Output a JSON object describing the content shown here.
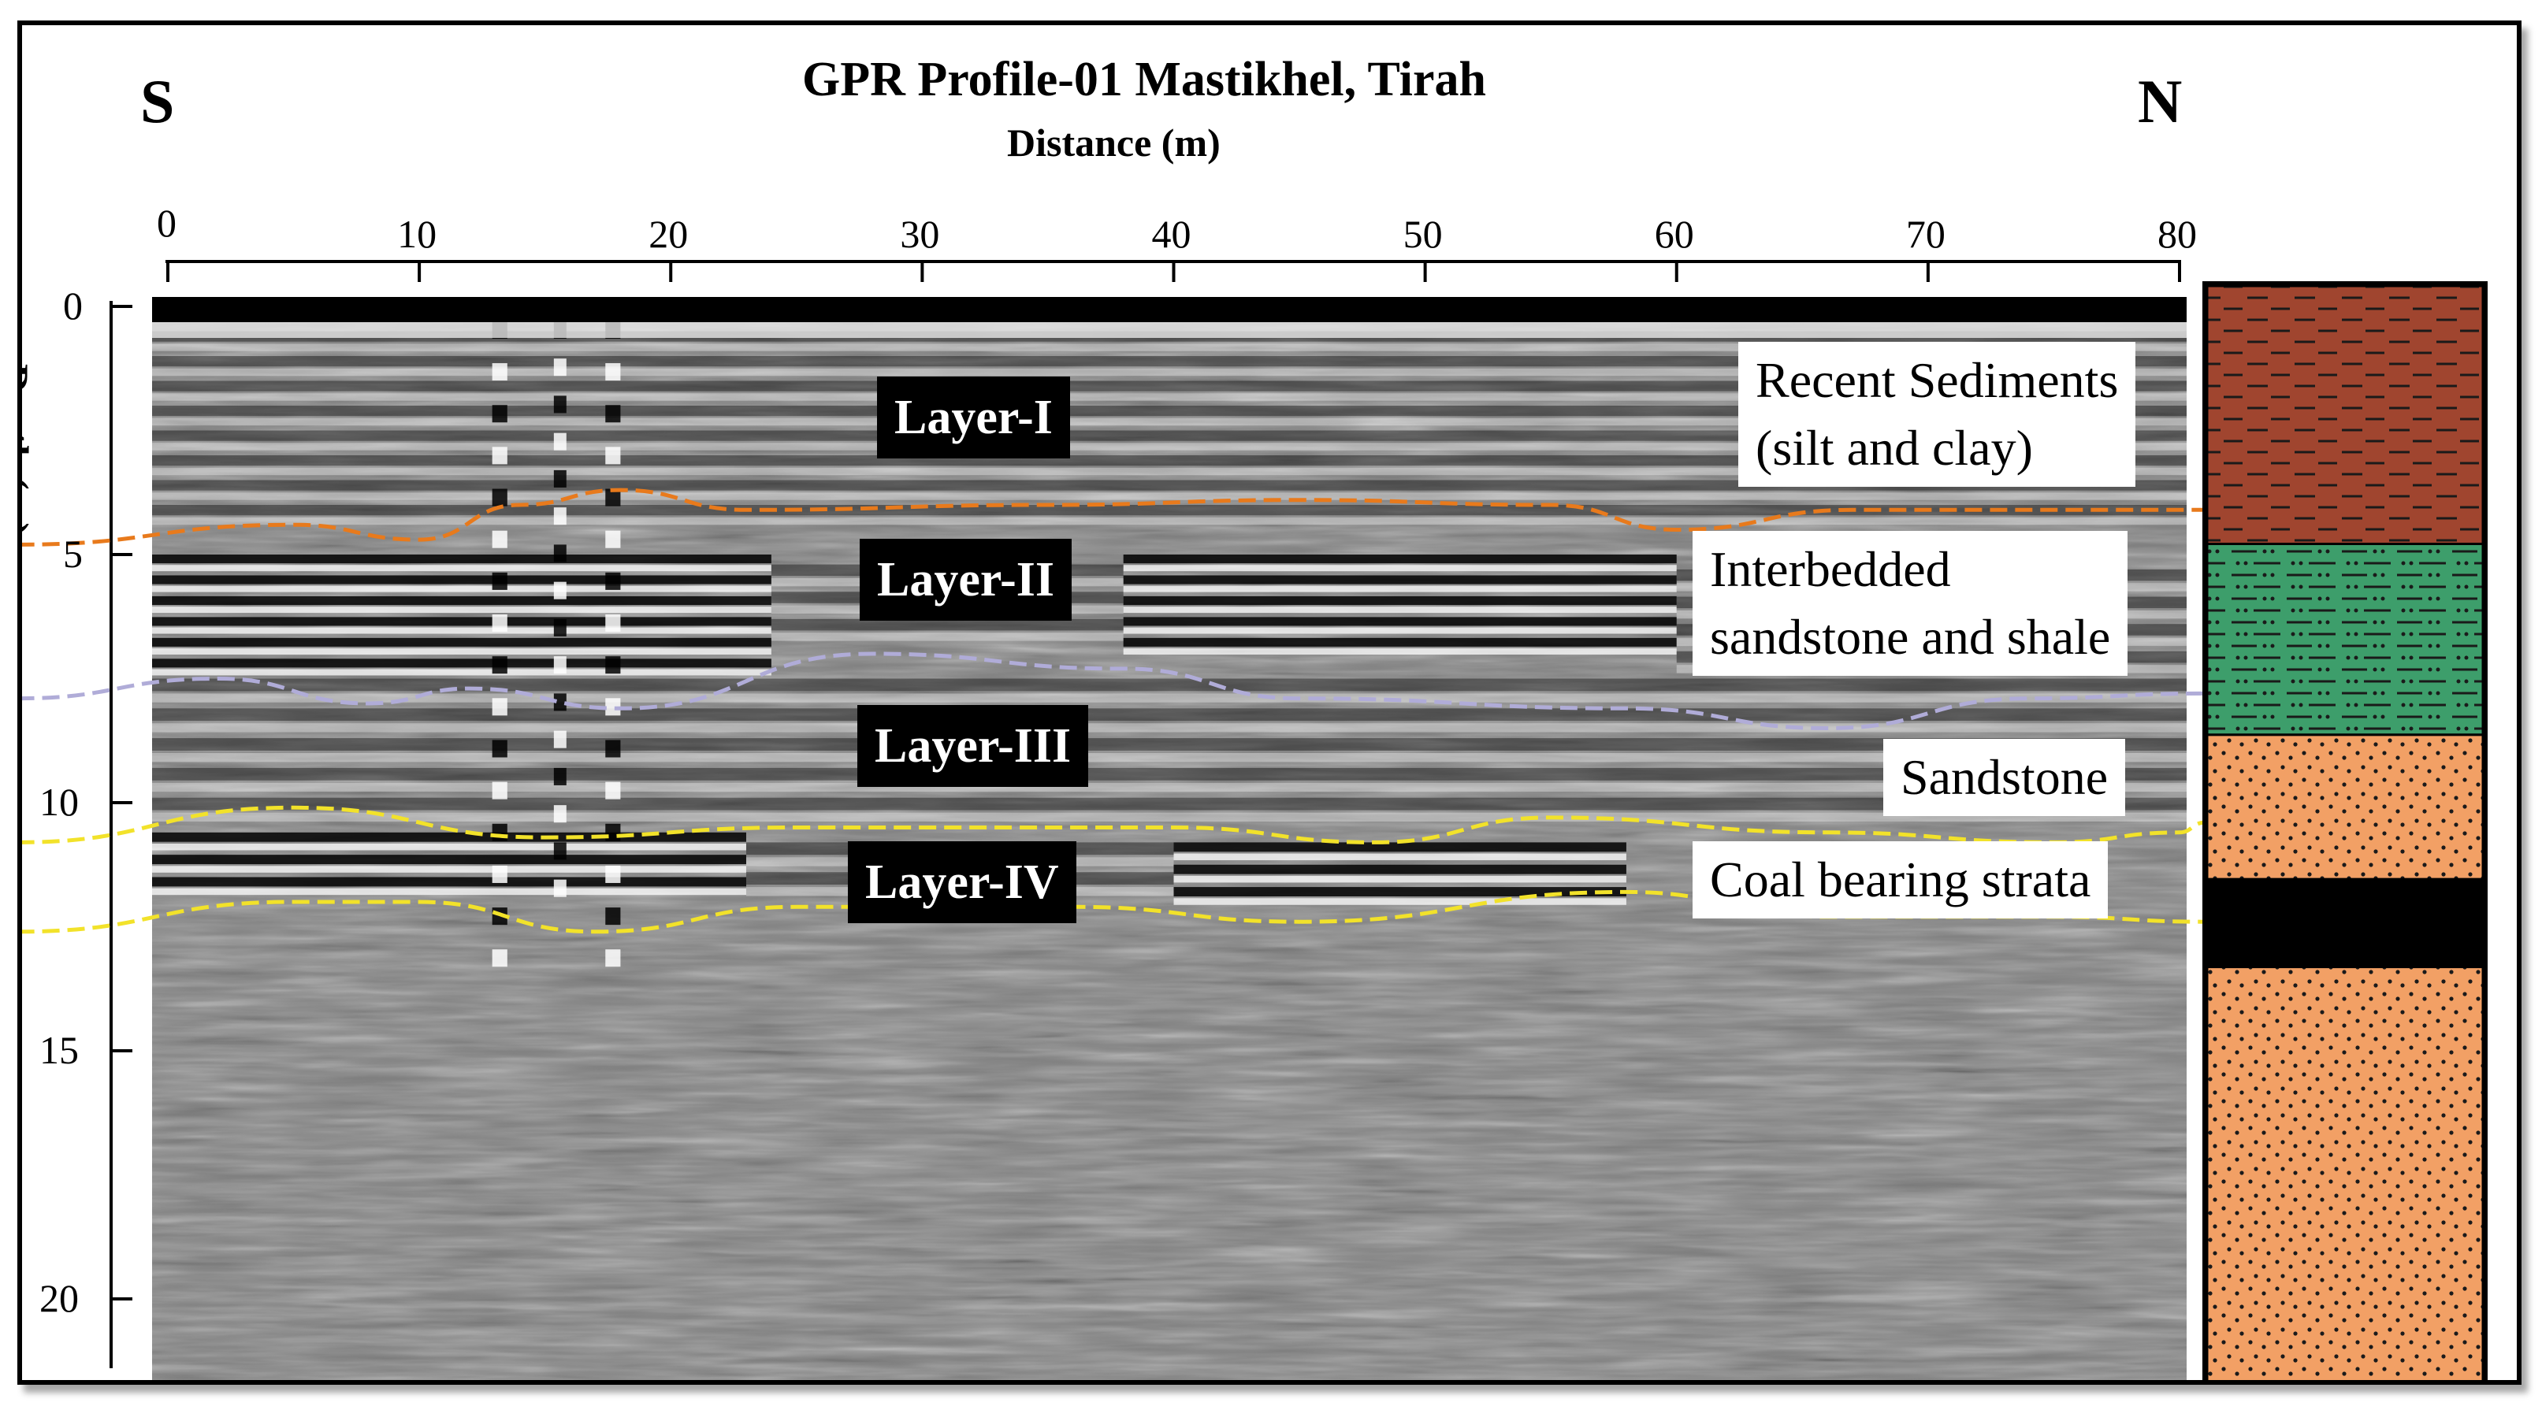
{
  "title": "GPR Profile-01 Mastikhel, Tirah",
  "x_axis": {
    "label": "Distance (m)",
    "ticks": [
      "0",
      "10",
      "20",
      "30",
      "40",
      "50",
      "60",
      "70",
      "80"
    ],
    "range": [
      0,
      80
    ]
  },
  "y_axis": {
    "label": "Depth (m)",
    "ticks": [
      "0",
      "5",
      "10",
      "15",
      "20"
    ],
    "range": [
      0,
      21
    ]
  },
  "directions": {
    "left": "S",
    "right": "N"
  },
  "layers": [
    {
      "label": "Layer-I",
      "description": "Recent Sediments (silt and clay)",
      "desc_lines": [
        "Recent  Sediments",
        "(silt and clay)"
      ],
      "color": "#a0452f",
      "pattern": "dashes"
    },
    {
      "label": "Layer-II",
      "description": "Interbedded sandstone and shale",
      "desc_lines": [
        "Interbedded",
        "sandstone and shale"
      ],
      "color": "#3d9e6b",
      "pattern": "dash-dot"
    },
    {
      "label": "Layer-III",
      "description": "Sandstone",
      "desc_lines": [
        "Sandstone"
      ],
      "color": "#f2a065",
      "pattern": "dots"
    },
    {
      "label": "Layer-IV",
      "description": "Coal bearing strata",
      "desc_lines": [
        "Coal bearing strata"
      ],
      "color": "#000000",
      "pattern": "solid"
    }
  ],
  "column_units": [
    {
      "unit": "Recent sediments",
      "top_m": 0,
      "bottom_m": 5,
      "color": "#a0452f"
    },
    {
      "unit": "Interbedded sandstone and shale",
      "top_m": 5,
      "bottom_m": 8.7,
      "color": "#3d9e6b"
    },
    {
      "unit": "Sandstone",
      "top_m": 8.7,
      "bottom_m": 11.5,
      "color": "#f2a065"
    },
    {
      "unit": "Coal",
      "top_m": 11.5,
      "bottom_m": 13.2,
      "color": "#000000"
    },
    {
      "unit": "Sandstone",
      "top_m": 13.2,
      "bottom_m": 21.5,
      "color": "#f2a065"
    }
  ],
  "interfaces": [
    {
      "name": "Layer I / II boundary",
      "color": "#e87a1c",
      "points": [
        [
          -6,
          4.8
        ],
        [
          5,
          4.4
        ],
        [
          10,
          4.7
        ],
        [
          14,
          4.0
        ],
        [
          18,
          3.7
        ],
        [
          23,
          4.1
        ],
        [
          35,
          4.0
        ],
        [
          45,
          3.9
        ],
        [
          55,
          4.0
        ],
        [
          60,
          4.5
        ],
        [
          67,
          4.1
        ],
        [
          80,
          4.1
        ],
        [
          81,
          4.1
        ]
      ]
    },
    {
      "name": "Layer II / III boundary",
      "color": "#b0acd8",
      "points": [
        [
          -6,
          7.9
        ],
        [
          2,
          7.5
        ],
        [
          8,
          8.0
        ],
        [
          12,
          7.7
        ],
        [
          18,
          8.1
        ],
        [
          28,
          7.0
        ],
        [
          38,
          7.3
        ],
        [
          45,
          7.9
        ],
        [
          58,
          8.1
        ],
        [
          66,
          8.5
        ],
        [
          74,
          7.9
        ],
        [
          81,
          7.8
        ]
      ]
    },
    {
      "name": "Layer III / IV top",
      "color": "#f2e22a",
      "points": [
        [
          -6,
          10.8
        ],
        [
          5,
          10.1
        ],
        [
          15,
          10.7
        ],
        [
          25,
          10.5
        ],
        [
          40,
          10.5
        ],
        [
          48,
          10.8
        ],
        [
          55,
          10.3
        ],
        [
          66,
          10.6
        ],
        [
          75,
          10.8
        ],
        [
          80,
          10.6
        ],
        [
          81,
          10.4
        ]
      ]
    },
    {
      "name": "Layer IV base",
      "color": "#f2e22a",
      "points": [
        [
          -6,
          12.6
        ],
        [
          5,
          12.0
        ],
        [
          10,
          12.0
        ],
        [
          17,
          12.6
        ],
        [
          25,
          12.1
        ],
        [
          36,
          12.1
        ],
        [
          45,
          12.4
        ],
        [
          58,
          11.8
        ],
        [
          66,
          12.3
        ],
        [
          75,
          12.3
        ],
        [
          81,
          12.4
        ]
      ]
    }
  ]
}
